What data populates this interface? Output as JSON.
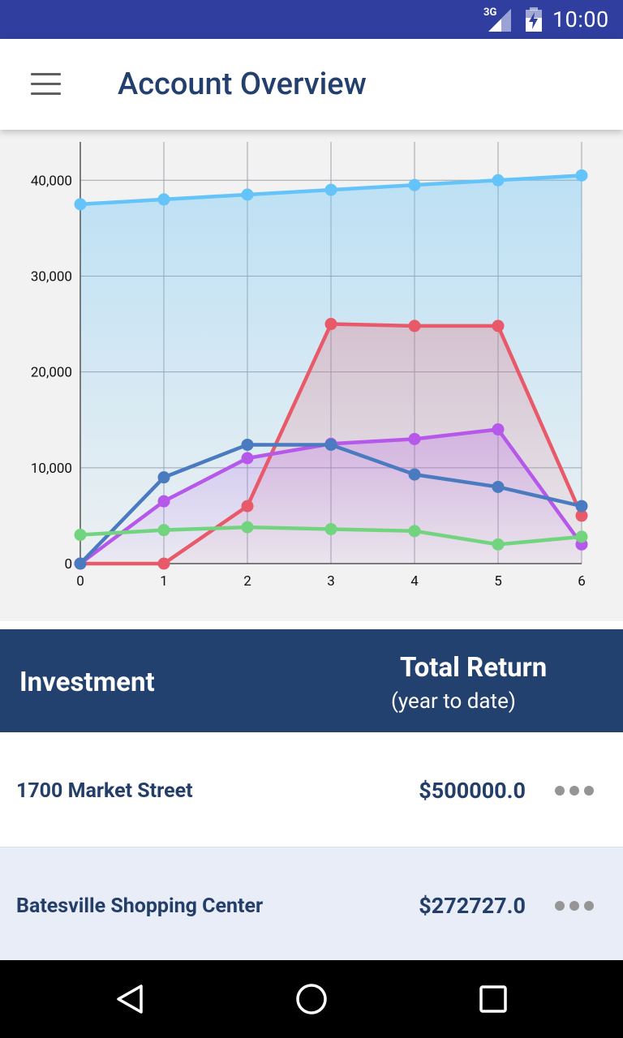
{
  "status_bar": {
    "network": "3G",
    "time": "10:00",
    "icons": [
      "signal-icon",
      "battery-charging-icon"
    ]
  },
  "app_bar": {
    "title": "Account Overview",
    "menu_icon": "hamburger-menu-icon"
  },
  "chart_data": {
    "type": "area",
    "x": [
      0,
      1,
      2,
      3,
      4,
      5,
      6
    ],
    "xlim": [
      0,
      6
    ],
    "ylim": [
      0,
      44000
    ],
    "x_ticks": [
      "0",
      "1",
      "2",
      "3",
      "4",
      "5",
      "6"
    ],
    "y_ticks": [
      {
        "value": 0,
        "label": "0"
      },
      {
        "value": 10000,
        "label": "10,000"
      },
      {
        "value": 20000,
        "label": "20,000"
      },
      {
        "value": 30000,
        "label": "30,000"
      },
      {
        "value": 40000,
        "label": "40,000"
      }
    ],
    "grid": true,
    "legend": "none",
    "series": [
      {
        "color": "#64c3f8",
        "filled": true,
        "values": [
          37500,
          38000,
          38500,
          39000,
          39500,
          40000,
          40500
        ]
      },
      {
        "color": "#e85a69",
        "filled": true,
        "values": [
          0,
          0,
          6000,
          25000,
          24800,
          24800,
          5000
        ]
      },
      {
        "color": "#b658ea",
        "filled": true,
        "values": [
          0,
          6500,
          11000,
          12500,
          13000,
          14000,
          2000
        ]
      },
      {
        "color": "#4a7ac0",
        "filled": false,
        "values": [
          0,
          9000,
          12400,
          12400,
          9300,
          8000,
          6000
        ]
      },
      {
        "color": "#72d47f",
        "filled": false,
        "values": [
          3000,
          3500,
          3800,
          3600,
          3400,
          2000,
          2800
        ]
      }
    ]
  },
  "table": {
    "header": {
      "investment": "Investment",
      "total_return": "Total Return",
      "total_return_sub": "(year to date)"
    },
    "rows": [
      {
        "name": "1700 Market Street",
        "value": "$500000.0"
      },
      {
        "name": "Batesville Shopping Center",
        "value": "$272727.0"
      }
    ]
  },
  "nav_bar": {
    "icons": [
      "back-icon",
      "home-icon",
      "recents-icon"
    ]
  }
}
